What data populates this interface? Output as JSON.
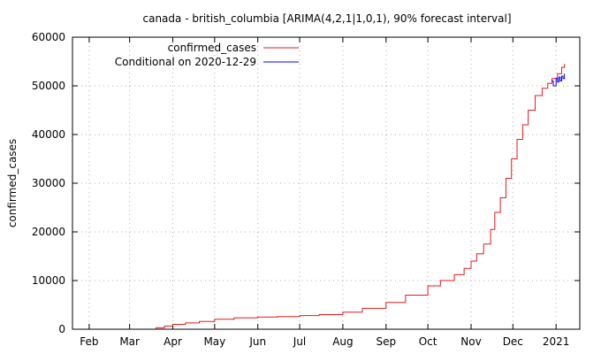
{
  "chart_data": {
    "type": "line",
    "title": "canada - british_columbia [ARIMA(4,2,1|1,0,1), 90% forecast interval]",
    "xlabel": "",
    "ylabel": "confirmed_cases",
    "x_unit": "date",
    "xlim": [
      "2020-01-20",
      "2021-01-18"
    ],
    "ylim": [
      0,
      60000
    ],
    "x_ticks": [
      {
        "date": "2020-02-01",
        "label": "Feb"
      },
      {
        "date": "2020-03-01",
        "label": "Mar"
      },
      {
        "date": "2020-04-01",
        "label": "Apr"
      },
      {
        "date": "2020-05-01",
        "label": "May"
      },
      {
        "date": "2020-06-01",
        "label": "Jun"
      },
      {
        "date": "2020-07-01",
        "label": "Jul"
      },
      {
        "date": "2020-08-01",
        "label": "Aug"
      },
      {
        "date": "2020-09-01",
        "label": "Sep"
      },
      {
        "date": "2020-10-01",
        "label": "Oct"
      },
      {
        "date": "2020-11-01",
        "label": "Nov"
      },
      {
        "date": "2020-12-01",
        "label": "Dec"
      },
      {
        "date": "2021-01-01",
        "label": "2021"
      }
    ],
    "y_ticks": [
      {
        "value": 0,
        "label": "0"
      },
      {
        "value": 10000,
        "label": "10000"
      },
      {
        "value": 20000,
        "label": "20000"
      },
      {
        "value": 30000,
        "label": "30000"
      },
      {
        "value": 40000,
        "label": "40000"
      },
      {
        "value": 50000,
        "label": "50000"
      },
      {
        "value": 60000,
        "label": "60000"
      }
    ],
    "grid": true,
    "legend_position": "top-right",
    "series": [
      {
        "name": "confirmed_cases",
        "color": "#e41a1c",
        "points": [
          [
            "2020-03-14",
            0
          ],
          [
            "2020-03-20",
            300
          ],
          [
            "2020-03-26",
            650
          ],
          [
            "2020-04-01",
            1000
          ],
          [
            "2020-04-10",
            1300
          ],
          [
            "2020-04-20",
            1600
          ],
          [
            "2020-05-01",
            2050
          ],
          [
            "2020-05-15",
            2350
          ],
          [
            "2020-06-01",
            2500
          ],
          [
            "2020-06-15",
            2600
          ],
          [
            "2020-07-01",
            2800
          ],
          [
            "2020-07-15",
            3000
          ],
          [
            "2020-08-01",
            3500
          ],
          [
            "2020-08-15",
            4300
          ],
          [
            "2020-09-01",
            5500
          ],
          [
            "2020-09-15",
            7000
          ],
          [
            "2020-10-01",
            8900
          ],
          [
            "2020-10-10",
            10000
          ],
          [
            "2020-10-20",
            11200
          ],
          [
            "2020-10-27",
            12500
          ],
          [
            "2020-11-01",
            14000
          ],
          [
            "2020-11-05",
            15500
          ],
          [
            "2020-11-10",
            17500
          ],
          [
            "2020-11-15",
            20500
          ],
          [
            "2020-11-18",
            24000
          ],
          [
            "2020-11-22",
            27000
          ],
          [
            "2020-11-26",
            31000
          ],
          [
            "2020-11-30",
            35000
          ],
          [
            "2020-12-04",
            39000
          ],
          [
            "2020-12-08",
            42000
          ],
          [
            "2020-12-12",
            45000
          ],
          [
            "2020-12-17",
            48000
          ],
          [
            "2020-12-22",
            49500
          ],
          [
            "2020-12-26",
            50500
          ],
          [
            "2020-12-29",
            51500
          ],
          [
            "2021-01-02",
            52500
          ],
          [
            "2021-01-05",
            53800
          ],
          [
            "2021-01-07",
            54500
          ]
        ]
      },
      {
        "name": "Conditional on 2020-12-29",
        "color": "#0000ff",
        "points": [
          [
            "2020-12-29",
            51000
          ],
          [
            "2020-12-30",
            50000
          ],
          [
            "2021-01-01",
            51500
          ],
          [
            "2021-01-02",
            50800
          ],
          [
            "2021-01-03",
            51800
          ],
          [
            "2021-01-04",
            51000
          ],
          [
            "2021-01-05",
            52000
          ],
          [
            "2021-01-06",
            51500
          ],
          [
            "2021-01-07",
            52500
          ]
        ]
      }
    ]
  }
}
